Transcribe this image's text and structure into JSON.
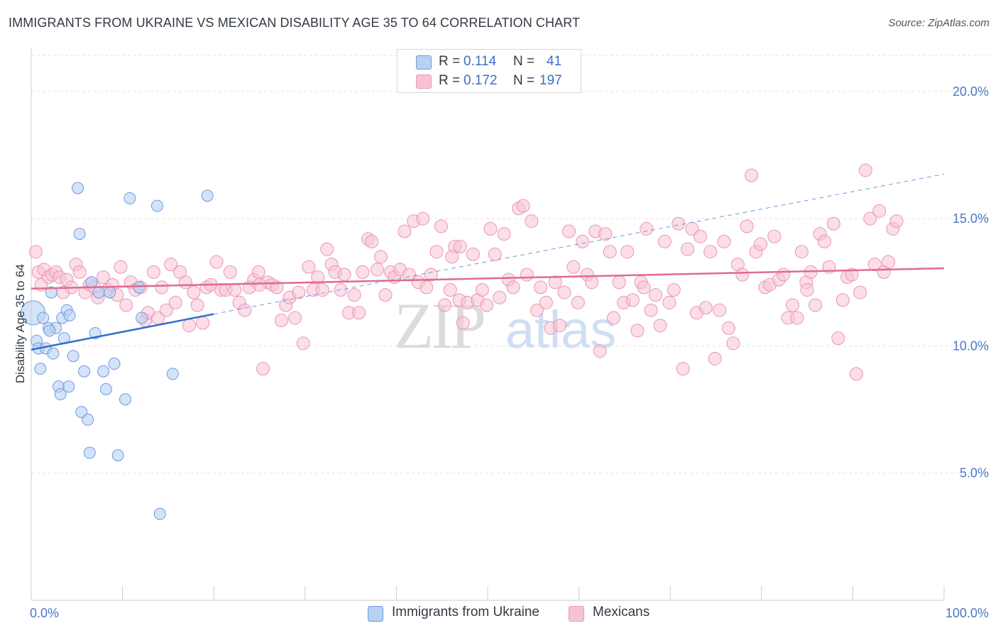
{
  "title": "IMMIGRANTS FROM UKRAINE VS MEXICAN DISABILITY AGE 35 TO 64 CORRELATION CHART",
  "source": "Source: ZipAtlas.com",
  "watermark": {
    "zip": "ZIP",
    "atlas": "atlas"
  },
  "colors": {
    "blue_fill": "#b8d0f2",
    "blue_stroke": "#6d9be0",
    "blue_line": "#2f6fd0",
    "pink_fill": "#f7c3d3",
    "pink_stroke": "#e996b3",
    "pink_line": "#e06a92",
    "grid": "#e4e4e4",
    "axis_text": "#4a78c4"
  },
  "legend": {
    "rows": [
      {
        "r_label": "R =",
        "r_value": "0.114",
        "n_label": "N =",
        "n_value": "41",
        "color": "#b8d0f2"
      },
      {
        "r_label": "R =",
        "r_value": "0.172",
        "n_label": "N =",
        "n_value": "197",
        "color": "#f7c3d3"
      }
    ]
  },
  "bottom_legend": [
    {
      "label": "Immigrants from Ukraine",
      "color": "#b8d0f2"
    },
    {
      "label": "Mexicans",
      "color": "#f7c3d3"
    }
  ],
  "chart_data": {
    "type": "scatter",
    "title": "IMMIGRANTS FROM UKRAINE VS MEXICAN DISABILITY AGE 35 TO 64 CORRELATION CHART",
    "xlabel": "",
    "ylabel": "Disability Age 35 to 64",
    "xlim": [
      0,
      100
    ],
    "ylim": [
      0,
      21.5
    ],
    "x_tick_labels": [
      "0.0%",
      "100.0%"
    ],
    "y_ticks": [
      5,
      10,
      15,
      20
    ],
    "y_tick_labels": [
      "5.0%",
      "10.0%",
      "15.0%",
      "20.0%"
    ],
    "grid": true,
    "legend_position": "top-center",
    "series": [
      {
        "name": "Immigrants from Ukraine",
        "r": 0.114,
        "n": 41,
        "trend": {
          "x0": 0,
          "y0": 9.85,
          "x1": 20,
          "y1": 11.25,
          "extended_to_x": 100,
          "extended_y": 16.75
        },
        "points": [
          [
            0.2,
            11.3
          ],
          [
            0.6,
            10.2
          ],
          [
            0.8,
            9.9
          ],
          [
            1.0,
            9.1
          ],
          [
            1.3,
            11.1
          ],
          [
            1.6,
            9.9
          ],
          [
            1.9,
            10.7
          ],
          [
            2.2,
            12.1
          ],
          [
            2.4,
            9.7
          ],
          [
            2.7,
            10.7
          ],
          [
            3.0,
            8.4
          ],
          [
            3.2,
            8.1
          ],
          [
            3.4,
            11.1
          ],
          [
            3.6,
            10.3
          ],
          [
            3.9,
            11.4
          ],
          [
            4.2,
            11.2
          ],
          [
            4.6,
            9.6
          ],
          [
            5.1,
            16.2
          ],
          [
            5.3,
            14.4
          ],
          [
            5.5,
            7.4
          ],
          [
            5.8,
            9.0
          ],
          [
            6.2,
            7.1
          ],
          [
            6.4,
            5.8
          ],
          [
            6.6,
            12.5
          ],
          [
            7.0,
            10.5
          ],
          [
            7.4,
            12.1
          ],
          [
            7.9,
            9.0
          ],
          [
            8.2,
            8.3
          ],
          [
            8.6,
            12.1
          ],
          [
            9.1,
            9.3
          ],
          [
            9.5,
            5.7
          ],
          [
            10.3,
            7.9
          ],
          [
            10.8,
            15.8
          ],
          [
            11.8,
            12.3
          ],
          [
            12.1,
            11.1
          ],
          [
            13.8,
            15.5
          ],
          [
            14.1,
            3.4
          ],
          [
            15.5,
            8.9
          ],
          [
            19.3,
            15.9
          ],
          [
            2.0,
            10.6
          ],
          [
            4.1,
            8.4
          ]
        ]
      },
      {
        "name": "Mexicans",
        "r": 0.172,
        "n": 197,
        "trend": {
          "x0": 0,
          "y0": 12.25,
          "x1": 100,
          "y1": 13.05
        },
        "points": [
          [
            0.5,
            13.7
          ],
          [
            0.8,
            12.9
          ],
          [
            1.1,
            12.4
          ],
          [
            1.4,
            13.0
          ],
          [
            1.9,
            12.7
          ],
          [
            2.3,
            12.8
          ],
          [
            2.7,
            12.9
          ],
          [
            3.1,
            12.7
          ],
          [
            3.5,
            12.1
          ],
          [
            3.9,
            12.6
          ],
          [
            4.4,
            12.3
          ],
          [
            4.9,
            13.2
          ],
          [
            5.3,
            12.9
          ],
          [
            5.9,
            12.1
          ],
          [
            6.4,
            12.4
          ],
          [
            6.9,
            12.3
          ],
          [
            7.3,
            11.9
          ],
          [
            7.9,
            12.7
          ],
          [
            8.4,
            12.2
          ],
          [
            8.9,
            12.4
          ],
          [
            9.4,
            12.0
          ],
          [
            9.8,
            13.1
          ],
          [
            10.4,
            11.6
          ],
          [
            10.9,
            12.5
          ],
          [
            11.4,
            12.2
          ],
          [
            12.0,
            12.3
          ],
          [
            12.5,
            11.0
          ],
          [
            12.8,
            11.3
          ],
          [
            13.4,
            12.9
          ],
          [
            13.9,
            11.1
          ],
          [
            14.3,
            12.3
          ],
          [
            14.8,
            11.4
          ],
          [
            15.3,
            13.2
          ],
          [
            15.8,
            11.7
          ],
          [
            16.3,
            12.9
          ],
          [
            16.9,
            12.5
          ],
          [
            17.3,
            10.8
          ],
          [
            17.8,
            12.1
          ],
          [
            18.2,
            11.6
          ],
          [
            18.8,
            10.9
          ],
          [
            19.2,
            12.3
          ],
          [
            19.7,
            12.4
          ],
          [
            20.3,
            13.3
          ],
          [
            20.8,
            12.2
          ],
          [
            21.3,
            12.2
          ],
          [
            21.8,
            12.9
          ],
          [
            22.3,
            12.2
          ],
          [
            22.8,
            11.7
          ],
          [
            23.4,
            11.4
          ],
          [
            23.9,
            12.3
          ],
          [
            24.4,
            12.6
          ],
          [
            24.9,
            12.9
          ],
          [
            25.4,
            9.1
          ],
          [
            25.9,
            12.5
          ],
          [
            26.4,
            12.4
          ],
          [
            26.9,
            12.3
          ],
          [
            27.4,
            11.0
          ],
          [
            27.9,
            11.6
          ],
          [
            28.3,
            11.9
          ],
          [
            28.9,
            11.1
          ],
          [
            29.3,
            12.1
          ],
          [
            29.8,
            10.1
          ],
          [
            30.4,
            13.1
          ],
          [
            30.9,
            12.2
          ],
          [
            31.4,
            12.7
          ],
          [
            31.9,
            12.2
          ],
          [
            32.4,
            13.8
          ],
          [
            32.9,
            13.2
          ],
          [
            33.3,
            12.9
          ],
          [
            33.9,
            12.2
          ],
          [
            34.3,
            12.8
          ],
          [
            34.8,
            11.3
          ],
          [
            35.4,
            12.0
          ],
          [
            35.9,
            11.3
          ],
          [
            36.3,
            12.9
          ],
          [
            36.9,
            14.2
          ],
          [
            37.3,
            14.1
          ],
          [
            37.9,
            13.0
          ],
          [
            38.3,
            13.5
          ],
          [
            38.8,
            12.0
          ],
          [
            39.4,
            12.9
          ],
          [
            39.8,
            12.7
          ],
          [
            40.4,
            13.0
          ],
          [
            40.9,
            14.5
          ],
          [
            41.4,
            12.8
          ],
          [
            41.9,
            14.9
          ],
          [
            42.4,
            12.5
          ],
          [
            42.9,
            15.0
          ],
          [
            43.3,
            12.3
          ],
          [
            43.8,
            12.8
          ],
          [
            44.4,
            13.7
          ],
          [
            44.9,
            14.7
          ],
          [
            45.3,
            11.6
          ],
          [
            45.9,
            12.2
          ],
          [
            46.4,
            13.9
          ],
          [
            46.9,
            11.8
          ],
          [
            47.3,
            10.9
          ],
          [
            47.8,
            11.7
          ],
          [
            48.4,
            13.6
          ],
          [
            48.9,
            11.8
          ],
          [
            49.4,
            12.2
          ],
          [
            49.9,
            11.6
          ],
          [
            50.3,
            14.6
          ],
          [
            50.8,
            13.6
          ],
          [
            51.3,
            11.9
          ],
          [
            51.8,
            14.4
          ],
          [
            52.3,
            12.6
          ],
          [
            52.8,
            12.3
          ],
          [
            53.4,
            15.4
          ],
          [
            53.9,
            15.5
          ],
          [
            54.3,
            12.8
          ],
          [
            54.8,
            14.9
          ],
          [
            55.4,
            11.4
          ],
          [
            55.8,
            12.3
          ],
          [
            56.4,
            11.7
          ],
          [
            56.9,
            10.7
          ],
          [
            57.4,
            12.5
          ],
          [
            57.9,
            10.8
          ],
          [
            58.4,
            12.1
          ],
          [
            58.9,
            14.5
          ],
          [
            59.4,
            13.1
          ],
          [
            59.9,
            11.7
          ],
          [
            60.4,
            14.1
          ],
          [
            60.9,
            12.8
          ],
          [
            61.4,
            12.5
          ],
          [
            61.8,
            14.5
          ],
          [
            62.3,
            9.8
          ],
          [
            62.9,
            14.4
          ],
          [
            63.4,
            13.7
          ],
          [
            63.8,
            11.1
          ],
          [
            64.4,
            12.5
          ],
          [
            64.9,
            11.7
          ],
          [
            65.3,
            13.7
          ],
          [
            65.9,
            11.8
          ],
          [
            66.4,
            10.6
          ],
          [
            66.8,
            12.5
          ],
          [
            67.4,
            14.6
          ],
          [
            67.9,
            11.4
          ],
          [
            68.4,
            12.0
          ],
          [
            68.9,
            10.8
          ],
          [
            69.4,
            14.1
          ],
          [
            69.9,
            11.7
          ],
          [
            70.4,
            12.2
          ],
          [
            70.9,
            14.8
          ],
          [
            71.4,
            9.1
          ],
          [
            71.9,
            13.8
          ],
          [
            72.4,
            14.6
          ],
          [
            72.9,
            11.3
          ],
          [
            73.3,
            14.3
          ],
          [
            73.9,
            11.5
          ],
          [
            74.4,
            13.7
          ],
          [
            74.9,
            9.5
          ],
          [
            75.4,
            11.4
          ],
          [
            75.9,
            14.1
          ],
          [
            76.4,
            10.7
          ],
          [
            76.9,
            10.1
          ],
          [
            77.4,
            13.2
          ],
          [
            77.9,
            12.8
          ],
          [
            78.4,
            14.7
          ],
          [
            78.9,
            16.7
          ],
          [
            79.4,
            13.7
          ],
          [
            79.9,
            14.0
          ],
          [
            80.4,
            12.3
          ],
          [
            80.9,
            12.4
          ],
          [
            81.4,
            14.3
          ],
          [
            81.9,
            12.6
          ],
          [
            82.4,
            12.8
          ],
          [
            82.9,
            11.1
          ],
          [
            83.4,
            11.6
          ],
          [
            83.9,
            11.1
          ],
          [
            84.4,
            13.7
          ],
          [
            84.9,
            12.5
          ],
          [
            85.4,
            12.9
          ],
          [
            85.9,
            11.6
          ],
          [
            86.4,
            14.4
          ],
          [
            86.9,
            14.1
          ],
          [
            87.4,
            13.1
          ],
          [
            87.9,
            14.8
          ],
          [
            88.4,
            10.3
          ],
          [
            88.9,
            11.8
          ],
          [
            89.4,
            12.7
          ],
          [
            89.9,
            12.8
          ],
          [
            90.4,
            8.9
          ],
          [
            90.8,
            12.1
          ],
          [
            91.4,
            16.9
          ],
          [
            91.9,
            15.0
          ],
          [
            92.4,
            13.2
          ],
          [
            92.9,
            15.3
          ],
          [
            93.4,
            12.9
          ],
          [
            93.9,
            13.3
          ],
          [
            94.4,
            14.6
          ],
          [
            94.8,
            14.9
          ],
          [
            47.0,
            13.9
          ],
          [
            46.1,
            13.5
          ],
          [
            67.1,
            12.3
          ],
          [
            85.0,
            12.2
          ],
          [
            25.0,
            12.4
          ]
        ]
      }
    ]
  }
}
